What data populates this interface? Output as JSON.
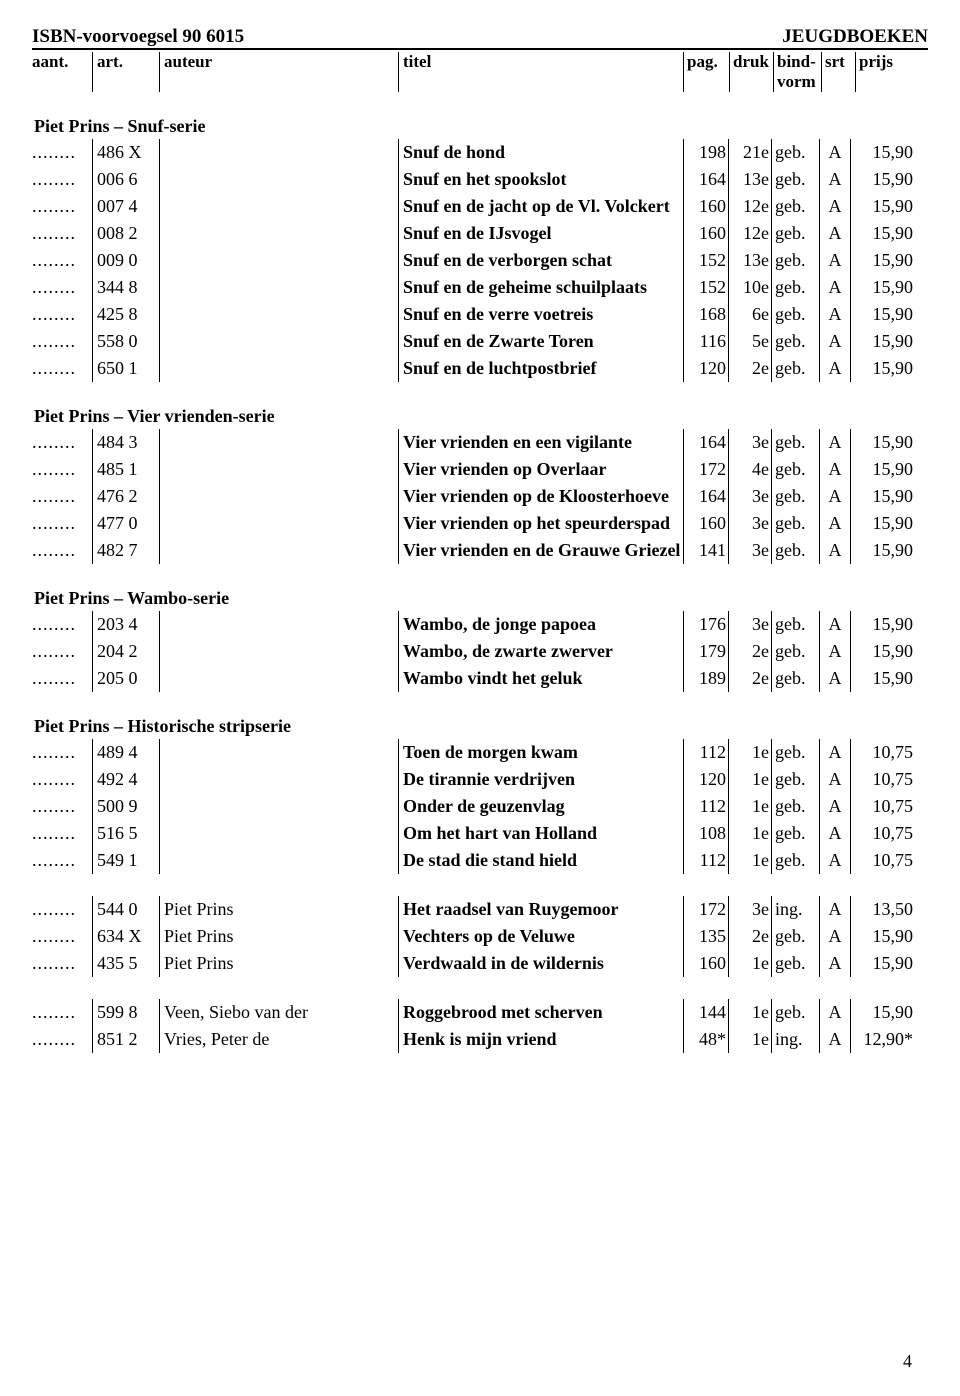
{
  "header": {
    "left": "ISBN-voorvoegsel 90 6015",
    "right": "JEUGDBOEKEN",
    "columns": {
      "aant": "aant.",
      "art": "art.",
      "auteur": "auteur",
      "titel": "titel",
      "pag": "pag.",
      "druk": "druk",
      "bind": "bind-\nvorm",
      "srt": "srt",
      "prijs": "prijs"
    }
  },
  "page_number": "4",
  "dots": "........",
  "sections": [
    {
      "title": "Piet Prins – Snuf-serie",
      "rows": [
        {
          "art": "486 X",
          "auteur": "",
          "titel": "Snuf de hond",
          "pag": "198",
          "druk": "21e",
          "bind": "geb.",
          "srt": "A",
          "prijs": "15,90"
        },
        {
          "art": "006 6",
          "auteur": "",
          "titel": "Snuf en het spookslot",
          "pag": "164",
          "druk": "13e",
          "bind": "geb.",
          "srt": "A",
          "prijs": "15,90"
        },
        {
          "art": "007 4",
          "auteur": "",
          "titel": "Snuf en de jacht op de Vl. Volckert",
          "pag": "160",
          "druk": "12e",
          "bind": "geb.",
          "srt": "A",
          "prijs": "15,90"
        },
        {
          "art": "008 2",
          "auteur": "",
          "titel": "Snuf en de IJsvogel",
          "pag": "160",
          "druk": "12e",
          "bind": "geb.",
          "srt": "A",
          "prijs": "15,90"
        },
        {
          "art": "009 0",
          "auteur": "",
          "titel": "Snuf en de verborgen schat",
          "pag": "152",
          "druk": "13e",
          "bind": "geb.",
          "srt": "A",
          "prijs": "15,90"
        },
        {
          "art": "344 8",
          "auteur": "",
          "titel": "Snuf en de geheime schuilplaats",
          "pag": "152",
          "druk": "10e",
          "bind": "geb.",
          "srt": "A",
          "prijs": "15,90"
        },
        {
          "art": "425 8",
          "auteur": "",
          "titel": "Snuf en de verre voetreis",
          "pag": "168",
          "druk": "6e",
          "bind": "geb.",
          "srt": "A",
          "prijs": "15,90"
        },
        {
          "art": "558 0",
          "auteur": "",
          "titel": "Snuf en de Zwarte Toren",
          "pag": "116",
          "druk": "5e",
          "bind": "geb.",
          "srt": "A",
          "prijs": "15,90"
        },
        {
          "art": "650 1",
          "auteur": "",
          "titel": "Snuf en de luchtpostbrief",
          "pag": "120",
          "druk": "2e",
          "bind": "geb.",
          "srt": "A",
          "prijs": "15,90"
        }
      ]
    },
    {
      "title": "Piet Prins – Vier vrienden-serie",
      "rows": [
        {
          "art": "484 3",
          "auteur": "",
          "titel": "Vier vrienden en een vigilante",
          "pag": "164",
          "druk": "3e",
          "bind": "geb.",
          "srt": "A",
          "prijs": "15,90"
        },
        {
          "art": "485 1",
          "auteur": "",
          "titel": "Vier vrienden op Overlaar",
          "pag": "172",
          "druk": "4e",
          "bind": "geb.",
          "srt": "A",
          "prijs": "15,90"
        },
        {
          "art": "476 2",
          "auteur": "",
          "titel": "Vier vrienden op de Kloosterhoeve",
          "pag": "164",
          "druk": "3e",
          "bind": "geb.",
          "srt": "A",
          "prijs": "15,90"
        },
        {
          "art": "477 0",
          "auteur": "",
          "titel": "Vier vrienden op het speurderspad",
          "pag": "160",
          "druk": "3e",
          "bind": "geb.",
          "srt": "A",
          "prijs": "15,90"
        },
        {
          "art": "482 7",
          "auteur": "",
          "titel": "Vier vrienden en de Grauwe Griezel",
          "pag": "141",
          "druk": "3e",
          "bind": "geb.",
          "srt": "A",
          "prijs": "15,90"
        }
      ]
    },
    {
      "title": "Piet Prins – Wambo-serie",
      "rows": [
        {
          "art": "203 4",
          "auteur": "",
          "titel": "Wambo, de jonge papoea",
          "pag": "176",
          "druk": "3e",
          "bind": "geb.",
          "srt": "A",
          "prijs": "15,90"
        },
        {
          "art": "204 2",
          "auteur": "",
          "titel": "Wambo, de zwarte zwerver",
          "pag": "179",
          "druk": "2e",
          "bind": "geb.",
          "srt": "A",
          "prijs": "15,90"
        },
        {
          "art": "205 0",
          "auteur": "",
          "titel": "Wambo vindt het geluk",
          "pag": "189",
          "druk": "2e",
          "bind": "geb.",
          "srt": "A",
          "prijs": "15,90"
        }
      ]
    },
    {
      "title": "Piet Prins – Historische stripserie",
      "rows": [
        {
          "art": "489 4",
          "auteur": "",
          "titel": "Toen de morgen kwam",
          "pag": "112",
          "druk": "1e",
          "bind": "geb.",
          "srt": "A",
          "prijs": "10,75"
        },
        {
          "art": "492 4",
          "auteur": "",
          "titel": "De tirannie verdrijven",
          "pag": "120",
          "druk": "1e",
          "bind": "geb.",
          "srt": "A",
          "prijs": "10,75"
        },
        {
          "art": "500 9",
          "auteur": "",
          "titel": "Onder de geuzenvlag",
          "pag": "112",
          "druk": "1e",
          "bind": "geb.",
          "srt": "A",
          "prijs": "10,75"
        },
        {
          "art": "516 5",
          "auteur": "",
          "titel": "Om het hart van Holland",
          "pag": "108",
          "druk": "1e",
          "bind": "geb.",
          "srt": "A",
          "prijs": "10,75"
        },
        {
          "art": "549 1",
          "auteur": "",
          "titel": "De stad die stand hield",
          "pag": "112",
          "druk": "1e",
          "bind": "geb.",
          "srt": "A",
          "prijs": "10,75"
        }
      ]
    },
    {
      "title": "",
      "rows": [
        {
          "art": "544 0",
          "auteur": "Piet Prins",
          "titel": "Het raadsel van Ruygemoor",
          "pag": "172",
          "druk": "3e",
          "bind": "ing.",
          "srt": "A",
          "prijs": "13,50"
        },
        {
          "art": "634 X",
          "auteur": "Piet Prins",
          "titel": "Vechters op de Veluwe",
          "pag": "135",
          "druk": "2e",
          "bind": "geb.",
          "srt": "A",
          "prijs": "15,90"
        },
        {
          "art": "435 5",
          "auteur": "Piet Prins",
          "titel": "Verdwaald in de wildernis",
          "pag": "160",
          "druk": "1e",
          "bind": "geb.",
          "srt": "A",
          "prijs": "15,90"
        }
      ]
    },
    {
      "title": "",
      "rows": [
        {
          "art": "599 8",
          "auteur": "Veen, Siebo van der",
          "titel": "Roggebrood met scherven",
          "pag": "144",
          "druk": "1e",
          "bind": "geb.",
          "srt": "A",
          "prijs": "15,90"
        },
        {
          "art": "851 2",
          "auteur": "Vries, Peter de",
          "titel": "Henk is mijn vriend",
          "pag": "48*",
          "druk": "1e",
          "bind": "ing.",
          "srt": "A",
          "prijs": "12,90*"
        }
      ]
    }
  ]
}
